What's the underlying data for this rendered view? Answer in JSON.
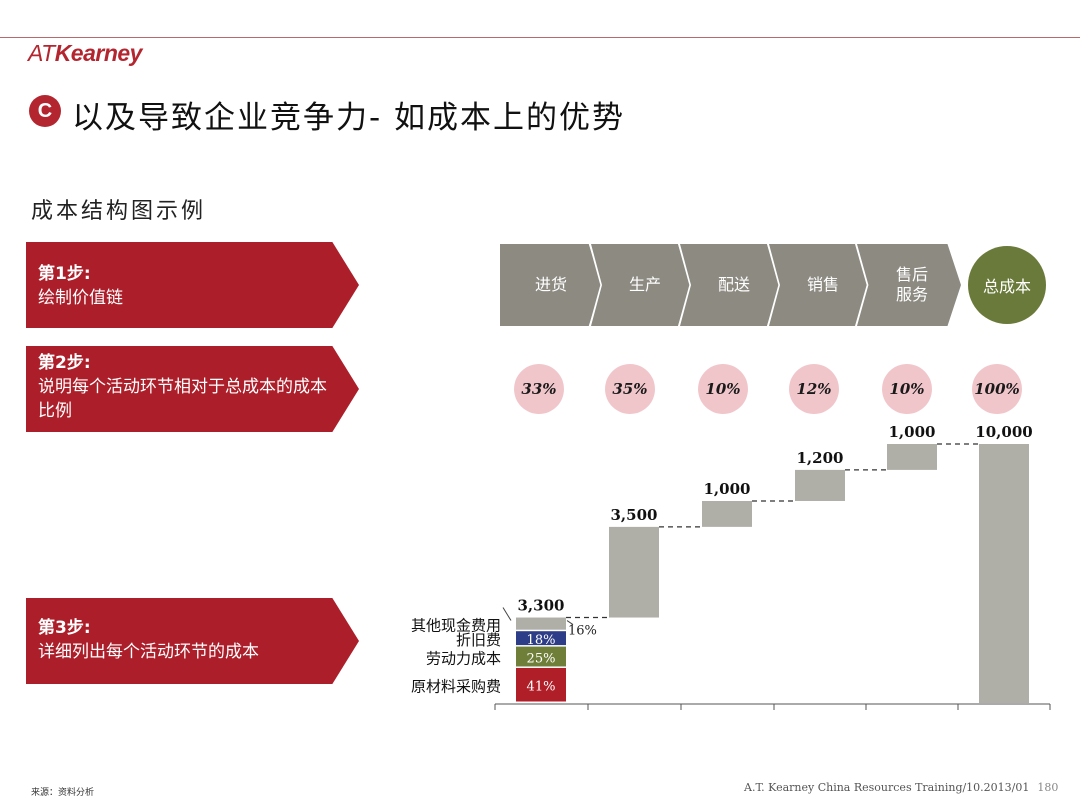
{
  "header": {
    "logo_at": "AT",
    "logo_name": "Kearney",
    "badge": "C",
    "title": "以及导致企业竞争力- 如成本上的优势",
    "subtitle": "成本结构图示例"
  },
  "steps": [
    {
      "title": "第1步:",
      "desc": "绘制价值链"
    },
    {
      "title": "第2步:",
      "desc": "说明每个活动环节相对于总成本的成本比例"
    },
    {
      "title": "第3步:",
      "desc": "详细列出每个活动环节的成本"
    }
  ],
  "value_chain": [
    "进货",
    "生产",
    "配送",
    "销售",
    "售后\n服务"
  ],
  "total_label": "总成本",
  "percentages": [
    "33%",
    "35%",
    "10%",
    "12%",
    "10%",
    "100%"
  ],
  "colors": {
    "brand_red": "#b4262f",
    "step_red": "#ac1f2a",
    "chevron_gray": "#8c8a81",
    "total_green": "#6a7a3a",
    "pct_pink": "#f1c6cb",
    "bar_gray": "#b0afa7",
    "navy": "#2e3d87",
    "olive": "#6f7f3a",
    "dark_red": "#b01e28"
  },
  "chart_data": {
    "type": "bar",
    "subtype": "waterfall",
    "categories": [
      "进货",
      "生产",
      "配送",
      "销售",
      "售后服务",
      "总成本"
    ],
    "values": [
      3300,
      3500,
      1000,
      1200,
      1000,
      10000
    ],
    "value_labels": [
      "3,300",
      "3,500",
      "1,000",
      "1,200",
      "1,000",
      "10,000"
    ],
    "ylim": [
      0,
      10000
    ],
    "first_bar_breakdown": [
      {
        "name": "原材料采购费",
        "label": "41%",
        "share": 0.41,
        "color": "#b01e28"
      },
      {
        "name": "劳动力成本",
        "label": "25%",
        "share": 0.25,
        "color": "#6f7f3a"
      },
      {
        "name": "折旧费",
        "label": "18%",
        "share": 0.18,
        "color": "#2e3d87"
      },
      {
        "name": "其他现金费用",
        "label": "16%",
        "share": 0.16,
        "color": "#b0afa7"
      }
    ]
  },
  "footer": {
    "text": "A.T. Kearney  China Resources  Training/10.2013/01",
    "page": "180",
    "source": "来源：资料分析"
  }
}
